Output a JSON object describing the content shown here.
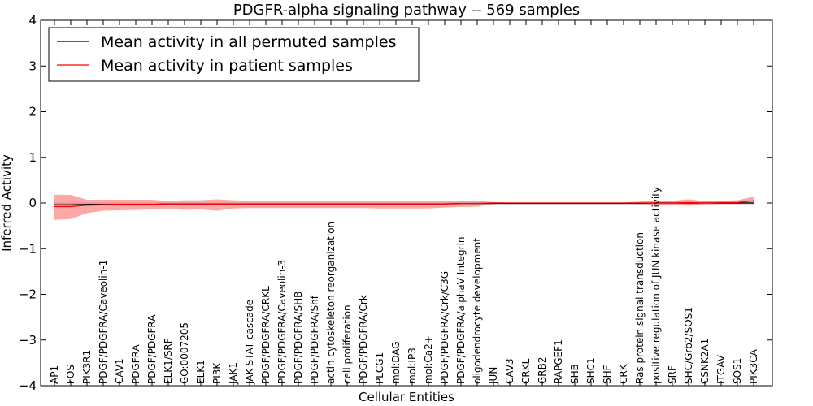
{
  "chart_data": {
    "type": "line",
    "title": "PDGFR-alpha signaling pathway -- 569 samples",
    "xlabel": "Cellular Entities",
    "ylabel": "Inferred Activity",
    "ylim": [
      -4,
      4
    ],
    "yticks": [
      "−4",
      "−3",
      "−2",
      "−1",
      "0",
      "1",
      "2",
      "3",
      "4"
    ],
    "yticks_values": [
      -4,
      -3,
      -2,
      -1,
      0,
      1,
      2,
      3,
      4
    ],
    "categories": [
      "AP1",
      "FOS",
      "PIK3R1",
      "PDGF/PDGFRA/Caveolin-1",
      "CAV1",
      "PDGFRA",
      "PDGF/PDGFRA",
      "ELK1/SRF",
      "GO:0007205",
      "ELK1",
      "PI3K",
      "JAK1",
      "JAK-STAT cascade",
      "PDGF/PDGFRA/CRKL",
      "PDGF/PDGFRA/Caveolin-3",
      "PDGF/PDGFRA/SHB",
      "PDGF/PDGFRA/Shf",
      "actin cytoskeleton reorganization",
      "cell proliferation",
      "PDGF/PDGFRA/Crk",
      "PLCG1",
      "mol:DAG",
      "mol:IP3",
      "mol:Ca2+",
      "PDGF/PDGFRA/Crk/C3G",
      "PDGF/PDGFRA/alphaV Integrin",
      "oligodendrocyte development",
      "JUN",
      "CAV3",
      "CRKL",
      "GRB2",
      "RAPGEF1",
      "SHB",
      "SHC1",
      "SHF",
      "CRK",
      "Ras protein signal transduction",
      "positive regulation of JUN kinase activity",
      "SRF",
      "SHC/Grb2/SOS1",
      "CSNK2A1",
      "ITGAV",
      "SOS1",
      "PIK3CA"
    ],
    "series": [
      {
        "name": "Mean activity in all permuted samples",
        "color": "#000000",
        "values": [
          -0.04,
          -0.04,
          -0.03,
          -0.03,
          -0.03,
          -0.03,
          -0.03,
          -0.02,
          -0.02,
          -0.02,
          -0.02,
          -0.02,
          -0.02,
          -0.02,
          -0.02,
          -0.02,
          -0.02,
          -0.02,
          -0.02,
          -0.02,
          -0.02,
          -0.02,
          -0.02,
          -0.02,
          -0.02,
          -0.01,
          -0.01,
          -0.01,
          -0.01,
          -0.01,
          -0.01,
          -0.01,
          -0.01,
          -0.01,
          -0.01,
          -0.01,
          -0.01,
          0.0,
          0.0,
          0.0,
          0.0,
          0.0,
          0.0,
          0.0
        ],
        "band_low": [
          -0.07,
          -0.07,
          -0.06,
          -0.06,
          -0.06,
          -0.06,
          -0.06,
          -0.05,
          -0.05,
          -0.05,
          -0.05,
          -0.05,
          -0.05,
          -0.05,
          -0.05,
          -0.05,
          -0.05,
          -0.05,
          -0.05,
          -0.05,
          -0.05,
          -0.05,
          -0.05,
          -0.05,
          -0.05,
          -0.05,
          -0.05,
          -0.04,
          -0.04,
          -0.04,
          -0.04,
          -0.04,
          -0.04,
          -0.04,
          -0.04,
          -0.04,
          -0.04,
          -0.03,
          -0.03,
          -0.03,
          -0.03,
          -0.03,
          -0.03,
          -0.03
        ],
        "band_high": [
          0.01,
          0.01,
          0.01,
          0.01,
          0.01,
          0.01,
          0.01,
          0.01,
          0.01,
          0.01,
          0.01,
          0.01,
          0.01,
          0.01,
          0.01,
          0.01,
          0.01,
          0.01,
          0.01,
          0.01,
          0.01,
          0.01,
          0.01,
          0.01,
          0.01,
          0.02,
          0.02,
          0.02,
          0.02,
          0.02,
          0.02,
          0.02,
          0.02,
          0.02,
          0.02,
          0.02,
          0.02,
          0.03,
          0.03,
          0.03,
          0.03,
          0.03,
          0.03,
          0.03
        ]
      },
      {
        "name": "Mean activity in patient samples",
        "color": "#ff0000",
        "values": [
          -0.08,
          -0.08,
          -0.05,
          -0.04,
          -0.03,
          -0.03,
          -0.03,
          -0.02,
          -0.02,
          -0.02,
          -0.02,
          -0.02,
          -0.02,
          -0.02,
          -0.02,
          -0.02,
          -0.02,
          -0.02,
          -0.02,
          -0.02,
          -0.02,
          -0.02,
          -0.02,
          -0.02,
          -0.02,
          -0.01,
          -0.01,
          0.0,
          0.0,
          0.0,
          0.0,
          0.0,
          0.0,
          0.0,
          0.0,
          0.0,
          0.0,
          0.0,
          0.0,
          0.01,
          0.0,
          0.01,
          0.01,
          0.05
        ],
        "band_low": [
          -0.37,
          -0.35,
          -0.22,
          -0.17,
          -0.16,
          -0.15,
          -0.14,
          -0.12,
          -0.15,
          -0.14,
          -0.17,
          -0.12,
          -0.11,
          -0.11,
          -0.11,
          -0.11,
          -0.11,
          -0.11,
          -0.11,
          -0.11,
          -0.12,
          -0.12,
          -0.12,
          -0.12,
          -0.1,
          -0.09,
          -0.08,
          -0.02,
          -0.01,
          -0.01,
          -0.01,
          -0.01,
          -0.01,
          -0.01,
          -0.01,
          -0.01,
          -0.02,
          -0.04,
          -0.04,
          -0.06,
          -0.03,
          -0.02,
          -0.02,
          -0.02
        ],
        "band_high": [
          0.18,
          0.18,
          0.07,
          0.07,
          0.07,
          0.07,
          0.07,
          0.04,
          0.06,
          0.06,
          0.08,
          0.06,
          0.05,
          0.05,
          0.05,
          0.05,
          0.05,
          0.05,
          0.05,
          0.05,
          0.05,
          0.05,
          0.05,
          0.05,
          0.05,
          0.05,
          0.05,
          0.02,
          0.01,
          0.01,
          0.01,
          0.01,
          0.01,
          0.01,
          0.01,
          0.01,
          0.03,
          0.05,
          0.05,
          0.08,
          0.04,
          0.05,
          0.06,
          0.14
        ]
      }
    ],
    "legend": {
      "position": "top-left",
      "entries": [
        "Mean activity in all permuted samples",
        "Mean activity in patient samples"
      ]
    },
    "grid": false
  }
}
